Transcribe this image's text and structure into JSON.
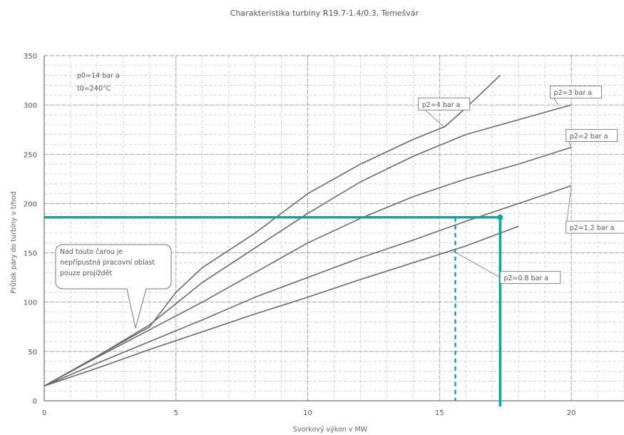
{
  "chart_data": {
    "type": "line",
    "title": "Charakteristika turbíny R19.7-1.4/0.3, Temešvár",
    "xlabel": "Svorkový výkon v MW",
    "ylabel": "Průtok páry do turbíny v t/hod",
    "xlim": [
      0,
      22
    ],
    "ylim": [
      0,
      350
    ],
    "x_ticks": [
      0,
      5,
      10,
      15,
      20
    ],
    "y_ticks": [
      0,
      50,
      100,
      150,
      200,
      250,
      300,
      350
    ],
    "grid": true,
    "conditions_text": [
      "p0=14 bar a",
      "t0=240°C"
    ],
    "note_text": [
      "Nad touto čarou je",
      "nepřípustná pracovní oblast",
      "pouze projíždět"
    ],
    "series": [
      {
        "name": "p2=4 bar a",
        "label_at": [
          14.2,
          301
        ],
        "label_anchor": [
          15.2,
          277
        ],
        "points": [
          [
            0,
            15
          ],
          [
            2,
            45
          ],
          [
            4,
            75
          ],
          [
            5,
            110
          ],
          [
            6,
            135
          ],
          [
            8,
            170
          ],
          [
            10,
            210
          ],
          [
            12,
            240
          ],
          [
            14,
            265
          ],
          [
            15.2,
            278
          ],
          [
            16,
            297
          ],
          [
            17.3,
            330
          ]
        ]
      },
      {
        "name": "p2=3 bar a",
        "label_at": [
          19.2,
          313
        ],
        "label_anchor": [
          19.5,
          300
        ],
        "points": [
          [
            0,
            15
          ],
          [
            2,
            45
          ],
          [
            4,
            77
          ],
          [
            6,
            120
          ],
          [
            8,
            155
          ],
          [
            10,
            190
          ],
          [
            12,
            222
          ],
          [
            14,
            248
          ],
          [
            16,
            270
          ],
          [
            18,
            285
          ],
          [
            20,
            300
          ]
        ]
      },
      {
        "name": "p2=2 bar a",
        "label_at": [
          19.8,
          269
        ],
        "label_anchor": [
          20,
          257
        ],
        "points": [
          [
            0,
            15
          ],
          [
            2,
            44
          ],
          [
            4,
            72
          ],
          [
            6,
            100
          ],
          [
            8,
            130
          ],
          [
            10,
            160
          ],
          [
            12,
            185
          ],
          [
            14,
            207
          ],
          [
            16,
            225
          ],
          [
            18,
            240
          ],
          [
            20,
            257
          ]
        ]
      },
      {
        "name": "p2=1.2 bar a",
        "label_at": [
          19.8,
          176
        ],
        "label_anchor": [
          20,
          217
        ],
        "points": [
          [
            0,
            15
          ],
          [
            2,
            38
          ],
          [
            4,
            60
          ],
          [
            6,
            82
          ],
          [
            8,
            105
          ],
          [
            10,
            125
          ],
          [
            12,
            145
          ],
          [
            14,
            163
          ],
          [
            16,
            182
          ],
          [
            18,
            200
          ],
          [
            20,
            218
          ]
        ]
      },
      {
        "name": "p2=0.8 bar a",
        "label_at": [
          17.3,
          125
        ],
        "label_anchor": [
          15.5,
          152
        ],
        "points": [
          [
            0,
            15
          ],
          [
            2,
            33
          ],
          [
            4,
            52
          ],
          [
            6,
            70
          ],
          [
            8,
            88
          ],
          [
            10,
            105
          ],
          [
            12,
            123
          ],
          [
            14,
            140
          ],
          [
            16,
            157
          ],
          [
            18,
            177
          ]
        ]
      }
    ],
    "markers": {
      "horizontal_y": 186,
      "vertical_x": 17.3,
      "dashed_x": 15.6,
      "color": "#15a3a0"
    }
  }
}
